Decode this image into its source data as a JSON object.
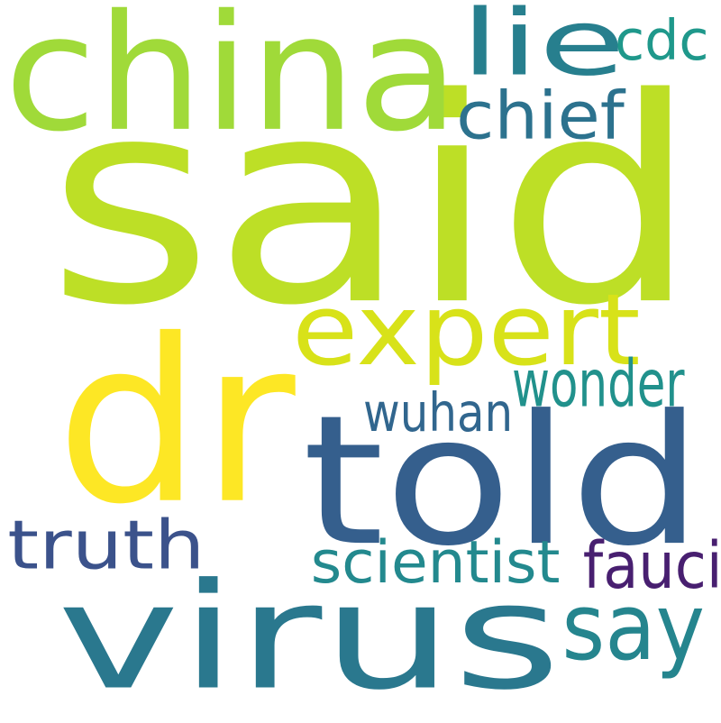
{
  "words": [
    {
      "text": "said",
      "color": "#bddf26"
    },
    {
      "text": "dr",
      "color": "#fde725"
    },
    {
      "text": "told",
      "color": "#355f8d"
    },
    {
      "text": "virus",
      "color": "#2a788e"
    },
    {
      "text": "china",
      "color": "#a0da39"
    },
    {
      "text": "expert",
      "color": "#d8e219"
    },
    {
      "text": "lie",
      "color": "#277f8e"
    },
    {
      "text": "cdc",
      "color": "#1f988b"
    },
    {
      "text": "chief",
      "color": "#2c728e"
    },
    {
      "text": "wonder",
      "color": "#21918c"
    },
    {
      "text": "wuhan",
      "color": "#31668e"
    },
    {
      "text": "truth",
      "color": "#3b528b"
    },
    {
      "text": "scientist",
      "color": "#23898e"
    },
    {
      "text": "fauci",
      "color": "#481f70"
    },
    {
      "text": "say",
      "color": "#25858e"
    }
  ]
}
